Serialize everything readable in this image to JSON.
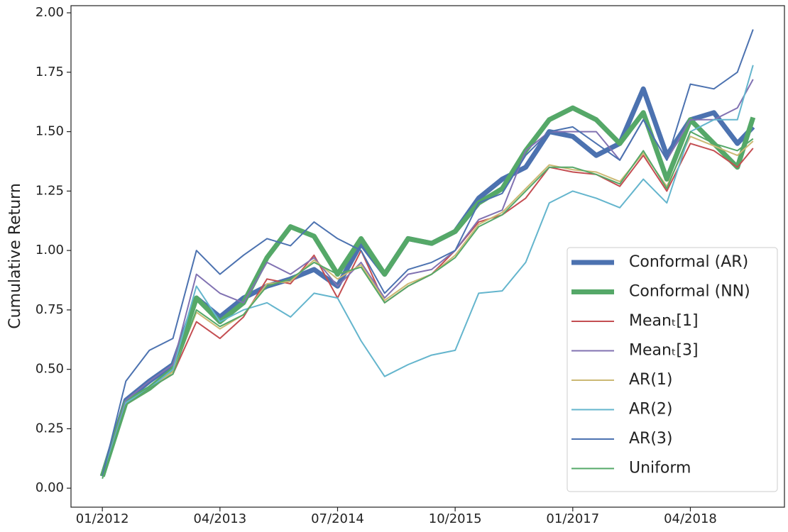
{
  "chart_data": {
    "type": "line",
    "ylabel": "Cumulative Return",
    "x": [
      "01/2012",
      "04/2012",
      "07/2012",
      "10/2012",
      "01/2013",
      "04/2013",
      "07/2013",
      "10/2013",
      "01/2014",
      "04/2014",
      "07/2014",
      "10/2014",
      "01/2015",
      "04/2015",
      "07/2015",
      "10/2015",
      "01/2016",
      "04/2016",
      "07/2016",
      "10/2016",
      "01/2017",
      "04/2017",
      "07/2017",
      "10/2017",
      "01/2018",
      "04/2018",
      "07/2018",
      "10/2018",
      "12/2018"
    ],
    "xlim": [
      "09/2011",
      "04/2019"
    ],
    "xticks": [
      "01/2012",
      "04/2013",
      "07/2014",
      "10/2015",
      "01/2017",
      "04/2018"
    ],
    "ylim": [
      -0.08,
      2.03
    ],
    "yticks": [
      {
        "value": 0,
        "label": "0.00"
      },
      {
        "value": 0.25,
        "label": "0.25"
      },
      {
        "value": 0.5,
        "label": "0.50"
      },
      {
        "value": 0.75,
        "label": "0.75"
      },
      {
        "value": 1,
        "label": "1.00"
      },
      {
        "value": 1.25,
        "label": "1.25"
      },
      {
        "value": 1.5,
        "label": "1.50"
      },
      {
        "value": 1.75,
        "label": "1.75"
      },
      {
        "value": 2,
        "label": "2.00"
      }
    ],
    "legend": "lower right",
    "grid": false,
    "series": [
      {
        "name": "Conformal (AR)",
        "color": "#4c72b0",
        "linewidth": 7,
        "values": [
          0.05,
          0.37,
          0.45,
          0.52,
          0.8,
          0.72,
          0.8,
          0.85,
          0.88,
          0.92,
          0.85,
          1.03,
          0.9,
          1.05,
          1.03,
          1.08,
          1.22,
          1.3,
          1.35,
          1.5,
          1.48,
          1.4,
          1.45,
          1.68,
          1.4,
          1.55,
          1.58,
          1.45,
          1.52
        ]
      },
      {
        "name": "Conformal (NN)",
        "color": "#55a868",
        "linewidth": 7,
        "values": [
          0.05,
          0.36,
          0.42,
          0.5,
          0.8,
          0.7,
          0.78,
          0.97,
          1.1,
          1.06,
          0.9,
          1.05,
          0.9,
          1.05,
          1.03,
          1.08,
          1.2,
          1.26,
          1.42,
          1.55,
          1.6,
          1.55,
          1.45,
          1.58,
          1.3,
          1.55,
          1.45,
          1.35,
          1.56
        ]
      },
      {
        "name": "Meanₜ[1]",
        "color": "#c44e52",
        "linewidth": 2,
        "values": [
          0.05,
          0.35,
          0.42,
          0.48,
          0.7,
          0.63,
          0.72,
          0.88,
          0.86,
          0.98,
          0.8,
          1.0,
          0.78,
          0.85,
          0.9,
          1.0,
          1.12,
          1.15,
          1.22,
          1.35,
          1.33,
          1.32,
          1.27,
          1.4,
          1.25,
          1.45,
          1.42,
          1.35,
          1.43
        ]
      },
      {
        "name": "Meanₜ[3]",
        "color": "#8172b2",
        "linewidth": 2,
        "values": [
          0.05,
          0.37,
          0.45,
          0.52,
          0.9,
          0.82,
          0.78,
          0.95,
          0.9,
          0.97,
          0.85,
          0.95,
          0.8,
          0.9,
          0.92,
          1.0,
          1.13,
          1.17,
          1.42,
          1.5,
          1.5,
          1.5,
          1.38,
          1.55,
          1.38,
          1.55,
          1.55,
          1.6,
          1.72
        ]
      },
      {
        "name": "AR(1)",
        "color": "#ccb974",
        "linewidth": 2,
        "values": [
          0.05,
          0.35,
          0.42,
          0.49,
          0.74,
          0.67,
          0.73,
          0.86,
          0.87,
          0.96,
          0.88,
          0.94,
          0.79,
          0.86,
          0.9,
          0.98,
          1.11,
          1.16,
          1.26,
          1.36,
          1.34,
          1.33,
          1.29,
          1.41,
          1.27,
          1.48,
          1.44,
          1.4,
          1.46
        ]
      },
      {
        "name": "AR(2)",
        "color": "#64b5cd",
        "linewidth": 2,
        "values": [
          0.05,
          0.36,
          0.42,
          0.5,
          0.85,
          0.7,
          0.75,
          0.78,
          0.72,
          0.82,
          0.8,
          0.62,
          0.47,
          0.52,
          0.56,
          0.58,
          0.82,
          0.83,
          0.95,
          1.2,
          1.25,
          1.22,
          1.18,
          1.3,
          1.2,
          1.5,
          1.55,
          1.55,
          1.78
        ]
      },
      {
        "name": "AR(3)",
        "color": "#4c72b0",
        "linewidth": 2,
        "values": [
          0.05,
          0.45,
          0.58,
          0.63,
          1.0,
          0.9,
          0.98,
          1.05,
          1.02,
          1.12,
          1.05,
          1.0,
          0.82,
          0.92,
          0.95,
          1.0,
          1.2,
          1.24,
          1.4,
          1.5,
          1.52,
          1.45,
          1.38,
          1.55,
          1.38,
          1.7,
          1.68,
          1.75,
          1.93
        ]
      },
      {
        "name": "Uniform",
        "color": "#55a868",
        "linewidth": 2,
        "values": [
          0.04,
          0.35,
          0.42,
          0.48,
          0.75,
          0.68,
          0.73,
          0.85,
          0.88,
          0.95,
          0.9,
          0.93,
          0.78,
          0.85,
          0.9,
          0.97,
          1.1,
          1.15,
          1.25,
          1.35,
          1.35,
          1.32,
          1.28,
          1.42,
          1.26,
          1.5,
          1.45,
          1.42,
          1.47
        ]
      }
    ]
  }
}
